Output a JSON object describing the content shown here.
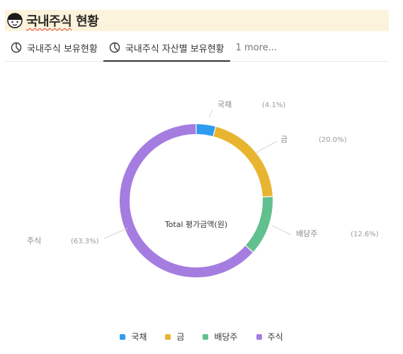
{
  "header": {
    "title_main": "국내주식",
    "title_rest": " 현황"
  },
  "tabs": [
    {
      "label": "국내주식 보유현황",
      "active": false
    },
    {
      "label": "국내주식 자산별 보유현황",
      "active": true
    },
    {
      "label": "1 more...",
      "active": false
    }
  ],
  "colors": {
    "header_bg": "#fbf3db",
    "국채": "#2d9cf0",
    "금": "#e8b531",
    "배당주": "#62c08f",
    "주식": "#a57de0"
  },
  "chart_data": {
    "type": "pie",
    "donut": true,
    "center_label": "Total 평가금액(원)",
    "categories": [
      "국채",
      "금",
      "배당주",
      "주식"
    ],
    "values": [
      4.1,
      20.0,
      12.6,
      63.3
    ],
    "percent_labels": [
      "(4.1%)",
      "(20.0%)",
      "(12.6%)",
      "(63.3%)"
    ],
    "legend": [
      "국채",
      "금",
      "배당주",
      "주식"
    ],
    "legend_position": "bottom"
  }
}
